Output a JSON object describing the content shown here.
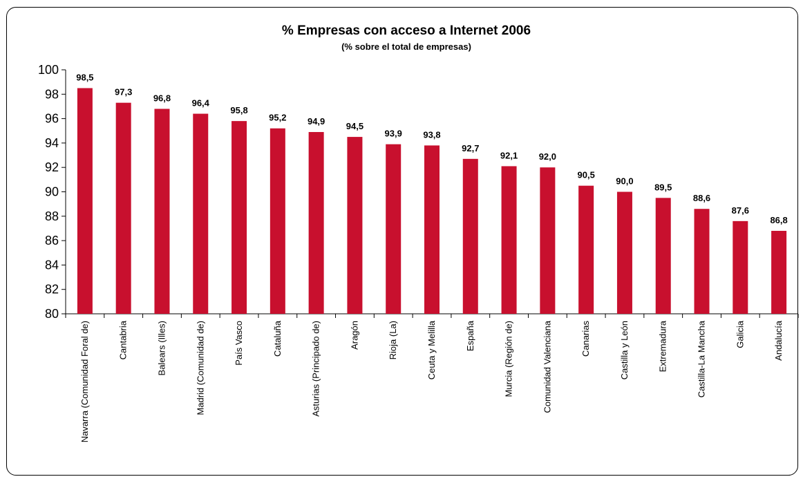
{
  "chart_data": {
    "type": "bar",
    "title": "% Empresas con acceso a Internet  2006",
    "subtitle": "(% sobre el total de empresas)",
    "xlabel": "",
    "ylabel": "",
    "ylim": [
      80,
      100
    ],
    "yticks": [
      80,
      82,
      84,
      86,
      88,
      90,
      92,
      94,
      96,
      98,
      100
    ],
    "grid": false,
    "legend": "none",
    "bar_color": "#C8102E",
    "categories": [
      "Navarra (Comunidad Foral de)",
      "Cantabria",
      "Balears (Illes)",
      "Madrid (Comunidad de)",
      "País Vasco",
      "Cataluña",
      "Asturias (Principado de)",
      "Aragón",
      "Rioja (La)",
      "Ceuta y Melilla",
      "España",
      "Murcia (Región de)",
      "Comunidad Valenciana",
      "Canarias",
      "Castilla y León",
      "Extremadura",
      "Castilla-La Mancha",
      "Galicia",
      "Andalucía"
    ],
    "values": [
      98.5,
      97.3,
      96.8,
      96.4,
      95.8,
      95.2,
      94.9,
      94.5,
      93.9,
      93.8,
      92.7,
      92.1,
      92.0,
      90.5,
      90.0,
      89.5,
      88.6,
      87.6,
      86.8
    ],
    "data_labels": [
      "98,5",
      "97,3",
      "96,8",
      "96,4",
      "95,8",
      "95,2",
      "94,9",
      "94,5",
      "93,9",
      "93,8",
      "92,7",
      "92,1",
      "92,0",
      "90,5",
      "90,0",
      "89,5",
      "88,6",
      "87,6",
      "86,8"
    ]
  }
}
